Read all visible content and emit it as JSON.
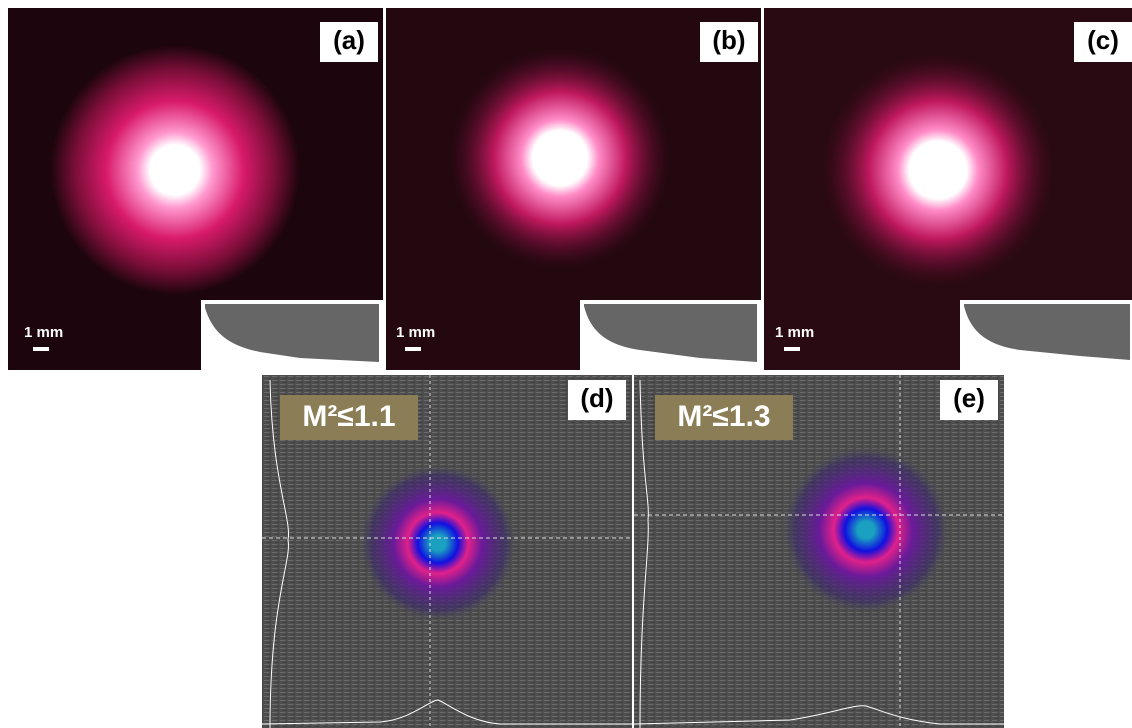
{
  "top_panels": [
    {
      "label": "(a)",
      "scale_bar": "1 mm"
    },
    {
      "label": "(b)",
      "scale_bar": "1 mm"
    },
    {
      "label": "(c)",
      "scale_bar": "1 mm"
    }
  ],
  "bottom_panels": [
    {
      "label": "(d)",
      "m2": "M²≤1.1"
    },
    {
      "label": "(e)",
      "m2": "M²≤1.3"
    }
  ]
}
